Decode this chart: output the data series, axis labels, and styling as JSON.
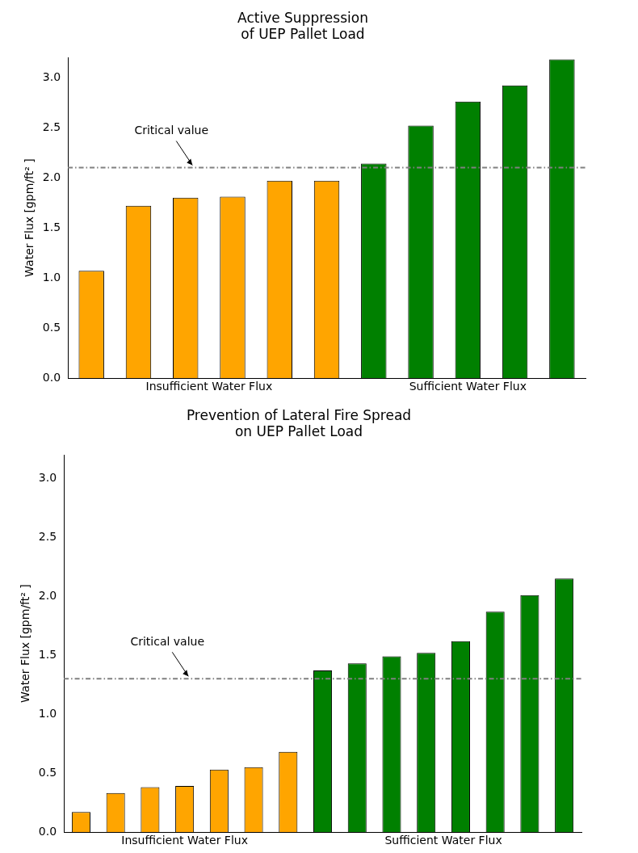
{
  "chart_data": [
    {
      "type": "bar",
      "title": "Active Suppression\nof UEP Pallet Load",
      "ylabel": "Water Flux [gpm/ft² ]",
      "categories": [
        null,
        null,
        null,
        null,
        null,
        null,
        null,
        null,
        null,
        null,
        null
      ],
      "values": [
        1.07,
        1.72,
        1.8,
        1.81,
        1.97,
        1.97,
        2.14,
        2.52,
        2.76,
        2.92,
        3.18
      ],
      "colors": [
        "#ffa500",
        "#ffa500",
        "#ffa500",
        "#ffa500",
        "#ffa500",
        "#ffa500",
        "#008000",
        "#008000",
        "#008000",
        "#008000",
        "#008000"
      ],
      "ylim": [
        0,
        3.2
      ],
      "yticks": [
        {
          "value": 0,
          "label": "0.0"
        },
        {
          "value": 0.5,
          "label": "0.5"
        },
        {
          "value": 1,
          "label": "1.0"
        },
        {
          "value": 1.5,
          "label": "1.5"
        },
        {
          "value": 2,
          "label": "2.0"
        },
        {
          "value": 2.5,
          "label": "2.5"
        },
        {
          "value": 3,
          "label": "3.0"
        }
      ],
      "ref_lines": [
        {
          "axis": "y",
          "value": 2.1,
          "label": "Critical value",
          "color": "#808080",
          "line_style": "dashed"
        }
      ],
      "annotations": [
        "Insufficient Water Flux",
        "Sufficient Water Flux"
      ],
      "grid": false,
      "legend": false,
      "tick_labels": "y"
    },
    {
      "type": "bar",
      "title": "Prevention of Lateral Fire Spread\non UEP Pallet Load",
      "ylabel": "Water Flux [gpm/ft² ]",
      "categories": [
        null,
        null,
        null,
        null,
        null,
        null,
        null,
        null,
        null,
        null,
        null,
        null,
        null,
        null,
        null
      ],
      "values": [
        0.17,
        0.33,
        0.38,
        0.39,
        0.53,
        0.55,
        0.68,
        1.37,
        1.43,
        1.49,
        1.52,
        1.62,
        1.87,
        2.01,
        2.15
      ],
      "colors": [
        "#ffa500",
        "#ffa500",
        "#ffa500",
        "#ffa500",
        "#ffa500",
        "#ffa500",
        "#ffa500",
        "#008000",
        "#008000",
        "#008000",
        "#008000",
        "#008000",
        "#008000",
        "#008000",
        "#008000"
      ],
      "ylim": [
        0,
        3.2
      ],
      "yticks": [
        {
          "value": 0,
          "label": "0.0"
        },
        {
          "value": 0.5,
          "label": "0.5"
        },
        {
          "value": 1,
          "label": "1.0"
        },
        {
          "value": 1.5,
          "label": "1.5"
        },
        {
          "value": 2,
          "label": "2.0"
        },
        {
          "value": 2.5,
          "label": "2.5"
        },
        {
          "value": 3,
          "label": "3.0"
        }
      ],
      "ref_lines": [
        {
          "axis": "y",
          "value": 1.3,
          "label": "Critical value",
          "color": "#808080",
          "line_style": "dashed"
        }
      ],
      "annotations": [
        "Insufficient Water Flux",
        "Sufficient Water Flux"
      ],
      "grid": false,
      "legend": false,
      "tick_labels": "y"
    }
  ]
}
